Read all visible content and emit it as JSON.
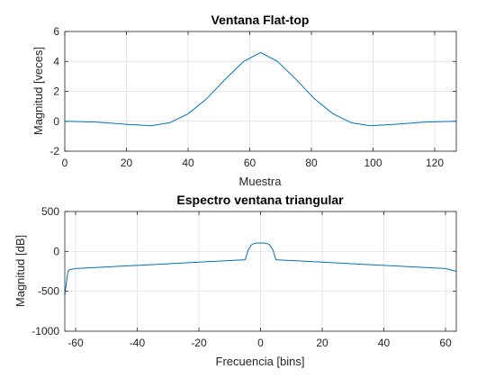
{
  "colors": {
    "line": "#0072BD"
  },
  "chart_data": [
    {
      "type": "line",
      "title": "Ventana Flat-top",
      "xlabel": "Muestra",
      "ylabel": "Magnitud [veces]",
      "xlim": [
        0,
        127
      ],
      "ylim": [
        -2,
        6
      ],
      "xticks": [
        0,
        20,
        40,
        60,
        80,
        100,
        120
      ],
      "yticks": [
        -2,
        0,
        2,
        4,
        6
      ],
      "xtick_labels": [
        "0",
        "20",
        "40",
        "60",
        "80",
        "100",
        "120"
      ],
      "ytick_labels": [
        "-2",
        "0",
        "2",
        "4",
        "6"
      ],
      "grid": true,
      "series": [
        {
          "x": [
            0,
            10,
            20,
            28,
            34,
            40,
            46,
            52,
            58,
            63.5,
            69,
            75,
            81,
            87,
            93,
            99,
            107,
            117,
            127
          ],
          "y": [
            0.0,
            -0.05,
            -0.2,
            -0.3,
            -0.1,
            0.5,
            1.5,
            2.8,
            4.0,
            4.6,
            4.0,
            2.8,
            1.5,
            0.5,
            -0.1,
            -0.3,
            -0.2,
            -0.05,
            0.0
          ]
        }
      ]
    },
    {
      "type": "line",
      "title": "Espectro ventana triangular",
      "xlabel": "Frecuencia [bins]",
      "ylabel": "Magnitud [dB]",
      "xlim": [
        -63.5,
        63.5
      ],
      "ylim": [
        -1000,
        500
      ],
      "xticks": [
        -60,
        -40,
        -20,
        0,
        20,
        40,
        60
      ],
      "yticks": [
        -1000,
        -500,
        0,
        500
      ],
      "xtick_labels": [
        "-60",
        "-40",
        "-20",
        "0",
        "20",
        "40",
        "60"
      ],
      "ytick_labels": [
        "-1000",
        "-500",
        "0",
        "500"
      ],
      "grid": true,
      "series": [
        {
          "x": [
            -63.5,
            -63,
            -62.5,
            -62,
            -60,
            -50,
            -40,
            -30,
            -20,
            -10,
            -5,
            -4,
            -3,
            -2,
            -1,
            0,
            1,
            2,
            3,
            4,
            5,
            10,
            20,
            30,
            40,
            50,
            55,
            60,
            62,
            63.5
          ],
          "y": [
            -550,
            -400,
            -250,
            -230,
            -215,
            -195,
            -175,
            -155,
            -135,
            -115,
            -105,
            20,
            80,
            100,
            105,
            105,
            105,
            100,
            80,
            20,
            -105,
            -115,
            -135,
            -155,
            -175,
            -195,
            -205,
            -215,
            -235,
            -250
          ]
        }
      ]
    }
  ]
}
